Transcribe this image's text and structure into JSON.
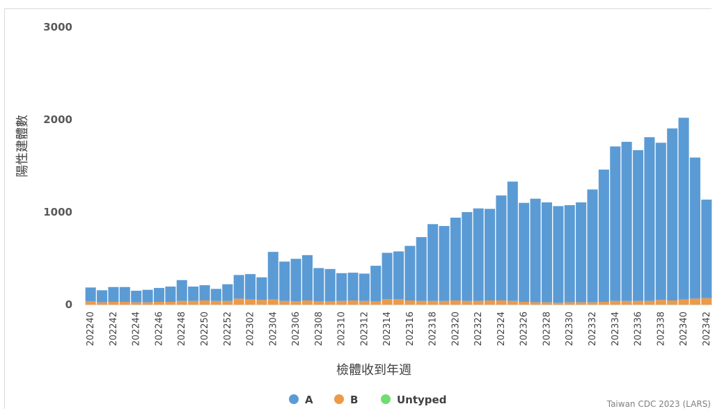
{
  "chart_data": {
    "type": "bar",
    "stacked": true,
    "xlabel": "檢體收到年週",
    "ylabel": "陽性建體數",
    "ylim": [
      0,
      3000
    ],
    "yticks": [
      0,
      1000,
      2000,
      3000
    ],
    "grid": false,
    "legend_position": "bottom",
    "source": "Taiwan CDC 2023 (LARS)",
    "categories": [
      "202240",
      "202241",
      "202242",
      "202243",
      "202244",
      "202245",
      "202246",
      "202247",
      "202248",
      "202249",
      "202250",
      "202251",
      "202252",
      "202301",
      "202302",
      "202303",
      "202304",
      "202305",
      "202306",
      "202307",
      "202308",
      "202309",
      "202310",
      "202311",
      "202312",
      "202313",
      "202314",
      "202315",
      "202316",
      "202317",
      "202318",
      "202319",
      "202320",
      "202321",
      "202322",
      "202323",
      "202324",
      "202325",
      "202326",
      "202327",
      "202328",
      "202329",
      "202330",
      "202331",
      "202332",
      "202333",
      "202334",
      "202335",
      "202336",
      "202337",
      "202338",
      "202339",
      "202340",
      "202341",
      "202342"
    ],
    "tick_labels": [
      "202240",
      "202242",
      "202244",
      "202246",
      "202248",
      "202250",
      "202252",
      "202302",
      "202304",
      "202306",
      "202308",
      "202310",
      "202312",
      "202314",
      "202316",
      "202318",
      "202320",
      "202322",
      "202324",
      "202326",
      "202328",
      "202330",
      "202332",
      "202334",
      "202336",
      "202338",
      "202340",
      "202342"
    ],
    "series": [
      {
        "name": "A",
        "color": "#5b9bd5",
        "values": [
          150,
          130,
          160,
          160,
          125,
          135,
          150,
          165,
          225,
          155,
          165,
          130,
          180,
          255,
          275,
          245,
          515,
          425,
          460,
          490,
          360,
          350,
          300,
          300,
          295,
          385,
          500,
          515,
          590,
          690,
          830,
          810,
          895,
          960,
          1000,
          990,
          1135,
          1290,
          1070,
          1120,
          1080,
          1045,
          1050,
          1080,
          1220,
          1430,
          1670,
          1720,
          1630,
          1770,
          1700,
          1860,
          1965,
          1525,
          1065
        ]
      },
      {
        "name": "B",
        "color": "#ed9a48",
        "values": [
          35,
          25,
          30,
          30,
          25,
          25,
          30,
          30,
          40,
          40,
          45,
          40,
          40,
          65,
          55,
          50,
          55,
          40,
          35,
          45,
          35,
          35,
          40,
          45,
          40,
          35,
          60,
          60,
          45,
          40,
          40,
          40,
          45,
          40,
          40,
          45,
          45,
          40,
          30,
          25,
          25,
          20,
          25,
          25,
          25,
          30,
          40,
          40,
          40,
          40,
          50,
          45,
          55,
          65,
          70
        ]
      },
      {
        "name": "Untyped",
        "color": "#70dd70",
        "values": [
          0,
          0,
          0,
          0,
          0,
          0,
          0,
          0,
          0,
          0,
          0,
          0,
          0,
          0,
          0,
          0,
          0,
          0,
          0,
          0,
          0,
          0,
          0,
          0,
          0,
          0,
          0,
          0,
          0,
          0,
          0,
          0,
          0,
          0,
          0,
          0,
          0,
          0,
          0,
          0,
          0,
          0,
          0,
          0,
          0,
          0,
          0,
          0,
          0,
          0,
          0,
          0,
          0,
          0,
          0
        ]
      }
    ]
  }
}
